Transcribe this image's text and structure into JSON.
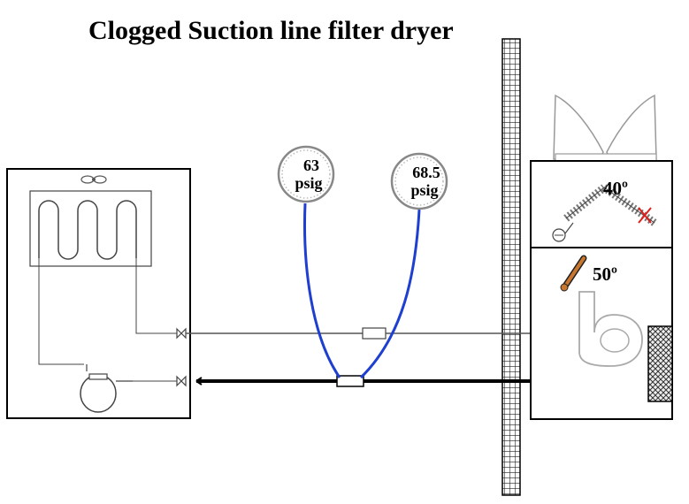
{
  "title": "Clogged Suction line filter dryer",
  "gauges": {
    "left": {
      "value": "63",
      "unit": "psig"
    },
    "right": {
      "value": "68.5",
      "unit": "psig"
    }
  },
  "evaporator_temp": "40º",
  "suction_temp": "50º",
  "colors": {
    "line": "#000000",
    "gauge_hose": "#1f3fd0",
    "fault_mark": "#e0201c",
    "thermometer": "#c9772f",
    "grid": "#1a1a1a"
  },
  "icons": [
    "fan-icon",
    "compressor-icon",
    "service-valve-icon",
    "filter-dryer-icon",
    "thermometer-icon",
    "blower-icon",
    "air-filter-icon",
    "fault-x-icon",
    "expansion-valve-bulb-icon"
  ]
}
